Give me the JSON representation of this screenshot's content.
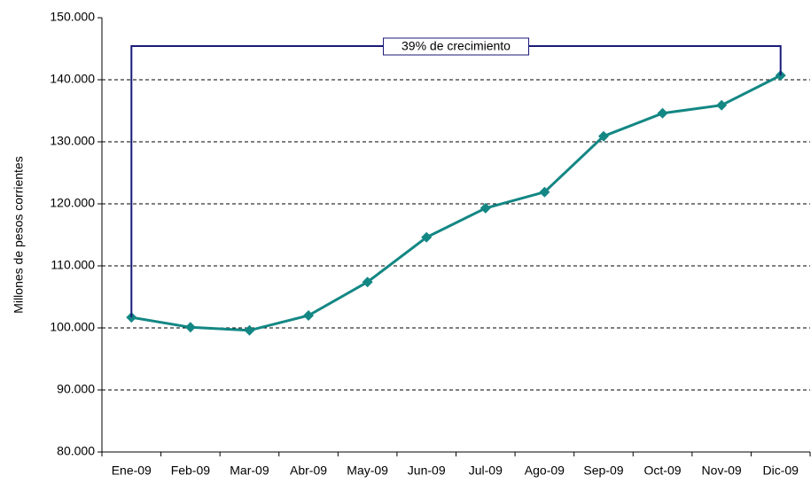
{
  "chart_data": {
    "type": "line",
    "y_label": "Millones de pesos corrientes",
    "annotation": "39% de crecimiento",
    "categories": [
      "Ene-09",
      "Feb-09",
      "Mar-09",
      "Abr-09",
      "May-09",
      "Jun-09",
      "Jul-09",
      "Ago-09",
      "Sep-09",
      "Oct-09",
      "Nov-09",
      "Dic-09"
    ],
    "series": [
      {
        "color": "#138784",
        "values": [
          101700,
          100100,
          99600,
          102000,
          107400,
          114600,
          119300,
          121900,
          130900,
          134600,
          135900,
          140700
        ]
      }
    ],
    "annotation_color": "#1a1a7a",
    "ylim": [
      80000,
      150000
    ],
    "yticks": [
      {
        "value": 80000,
        "label": "80.000"
      },
      {
        "value": 90000,
        "label": "90.000"
      },
      {
        "value": 100000,
        "label": "100.000"
      },
      {
        "value": 110000,
        "label": "110.000"
      },
      {
        "value": 120000,
        "label": "120.000"
      },
      {
        "value": 130000,
        "label": "130.000"
      },
      {
        "value": 140000,
        "label": "140.000"
      },
      {
        "value": 150000,
        "label": "150.000"
      }
    ],
    "grid": true
  }
}
